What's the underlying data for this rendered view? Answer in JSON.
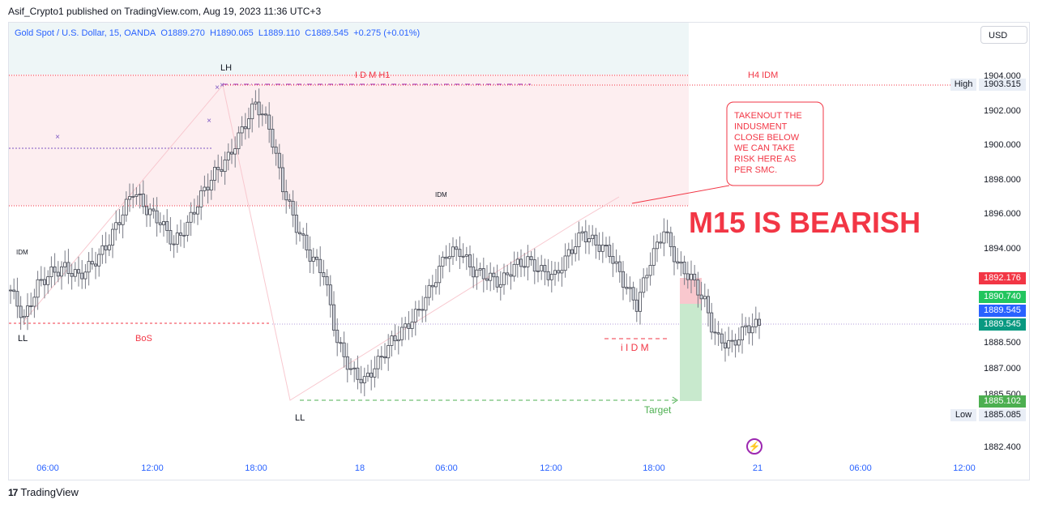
{
  "header": {
    "published": "Asif_Crypto1 published on TradingView.com, Aug 19, 2023 11:36 UTC+3"
  },
  "footer": {
    "brand": "TradingView",
    "logo": "17"
  },
  "legend": {
    "symbol": "Gold Spot / U.S. Dollar, 15, OANDA",
    "open_label": "O",
    "open": "1889.270",
    "high_label": "H",
    "high": "1890.065",
    "low_label": "L",
    "low": "1889.110",
    "close_label": "C",
    "close": "1889.545",
    "change": "+0.275 (+0.01%)"
  },
  "currency": "USD",
  "colors": {
    "up": "#2962ff",
    "down": "#131722",
    "wick": "#787b86",
    "red": "#f23645",
    "green": "#089981",
    "purple": "#9c27b0"
  },
  "price_tags": [
    {
      "value": "1892.176",
      "color": "#f23645"
    },
    {
      "value": "1890.740",
      "color": "#22c55e"
    },
    {
      "value": "1889.545",
      "color": "#2962ff"
    },
    {
      "value": "1889.545",
      "color": "#089981"
    },
    {
      "value": "1885.102",
      "color": "#4caf50"
    }
  ],
  "high_tag": {
    "label": "High",
    "value": "1903.515"
  },
  "low_tag": {
    "label": "Low",
    "value": "1885.085"
  },
  "chart_data": {
    "type": "candlestick",
    "y_ticks": [
      "1904.000",
      "1902.000",
      "1900.000",
      "1898.000",
      "1896.000",
      "1894.000",
      "1888.500",
      "1887.000",
      "1885.500",
      "1882.400"
    ],
    "x_ticks": [
      "06:00",
      "12:00",
      "18:00",
      "18",
      "06:00",
      "12:00",
      "18:00",
      "21",
      "06:00",
      "12:00"
    ],
    "ylim": [
      1882.0,
      1905.0
    ],
    "approx_close_path": [
      [
        0,
        1891.5
      ],
      [
        4,
        1889.8
      ],
      [
        8,
        1891.8
      ],
      [
        12,
        1892.5
      ],
      [
        16,
        1892.8
      ],
      [
        20,
        1892.3
      ],
      [
        24,
        1893.0
      ],
      [
        28,
        1894.0
      ],
      [
        32,
        1895.6
      ],
      [
        36,
        1897.3
      ],
      [
        40,
        1896.2
      ],
      [
        44,
        1895.5
      ],
      [
        48,
        1894.2
      ],
      [
        52,
        1895.3
      ],
      [
        56,
        1897.0
      ],
      [
        60,
        1898.3
      ],
      [
        64,
        1899.2
      ],
      [
        68,
        1900.8
      ],
      [
        72,
        1902.4
      ],
      [
        76,
        1901.0
      ],
      [
        80,
        1897.5
      ],
      [
        84,
        1895.2
      ],
      [
        88,
        1893.5
      ],
      [
        92,
        1892.5
      ],
      [
        96,
        1888.5
      ],
      [
        100,
        1886.8
      ],
      [
        104,
        1886.2
      ],
      [
        108,
        1887.3
      ],
      [
        112,
        1888.5
      ],
      [
        116,
        1889.3
      ],
      [
        120,
        1890.3
      ],
      [
        124,
        1891.8
      ],
      [
        128,
        1893.6
      ],
      [
        132,
        1893.8
      ],
      [
        136,
        1892.6
      ],
      [
        140,
        1892.3
      ],
      [
        144,
        1891.9
      ],
      [
        148,
        1892.9
      ],
      [
        152,
        1893.2
      ],
      [
        156,
        1892.6
      ],
      [
        160,
        1892.3
      ],
      [
        164,
        1893.6
      ],
      [
        168,
        1894.8
      ],
      [
        172,
        1894.2
      ],
      [
        176,
        1893.7
      ],
      [
        180,
        1892.0
      ],
      [
        184,
        1890.6
      ],
      [
        188,
        1893.2
      ],
      [
        192,
        1895.0
      ],
      [
        196,
        1893.0
      ],
      [
        200,
        1892.2
      ],
      [
        204,
        1890.8
      ],
      [
        206,
        1889.4
      ],
      [
        208,
        1888.6
      ],
      [
        212,
        1888.3
      ],
      [
        216,
        1889.3
      ],
      [
        220,
        1889.5
      ]
    ],
    "annotations": {
      "lh": "LH",
      "ll_left": "LL",
      "ll_mid": "LL",
      "idm_left": "IDM",
      "idm_mid": "IDM",
      "bos": "BoS",
      "idm_h1": "I D M H1",
      "h4_idm": "H4 IDM",
      "iidm": "i I D M",
      "target": "Target",
      "bearish": "M15 IS BEARISH",
      "note": [
        "TAKENOUT THE",
        "INDUSMENT",
        "CLOSE BELOW",
        "WE CAN TAKE",
        "RISK HERE AS",
        "PER SMC."
      ]
    }
  }
}
